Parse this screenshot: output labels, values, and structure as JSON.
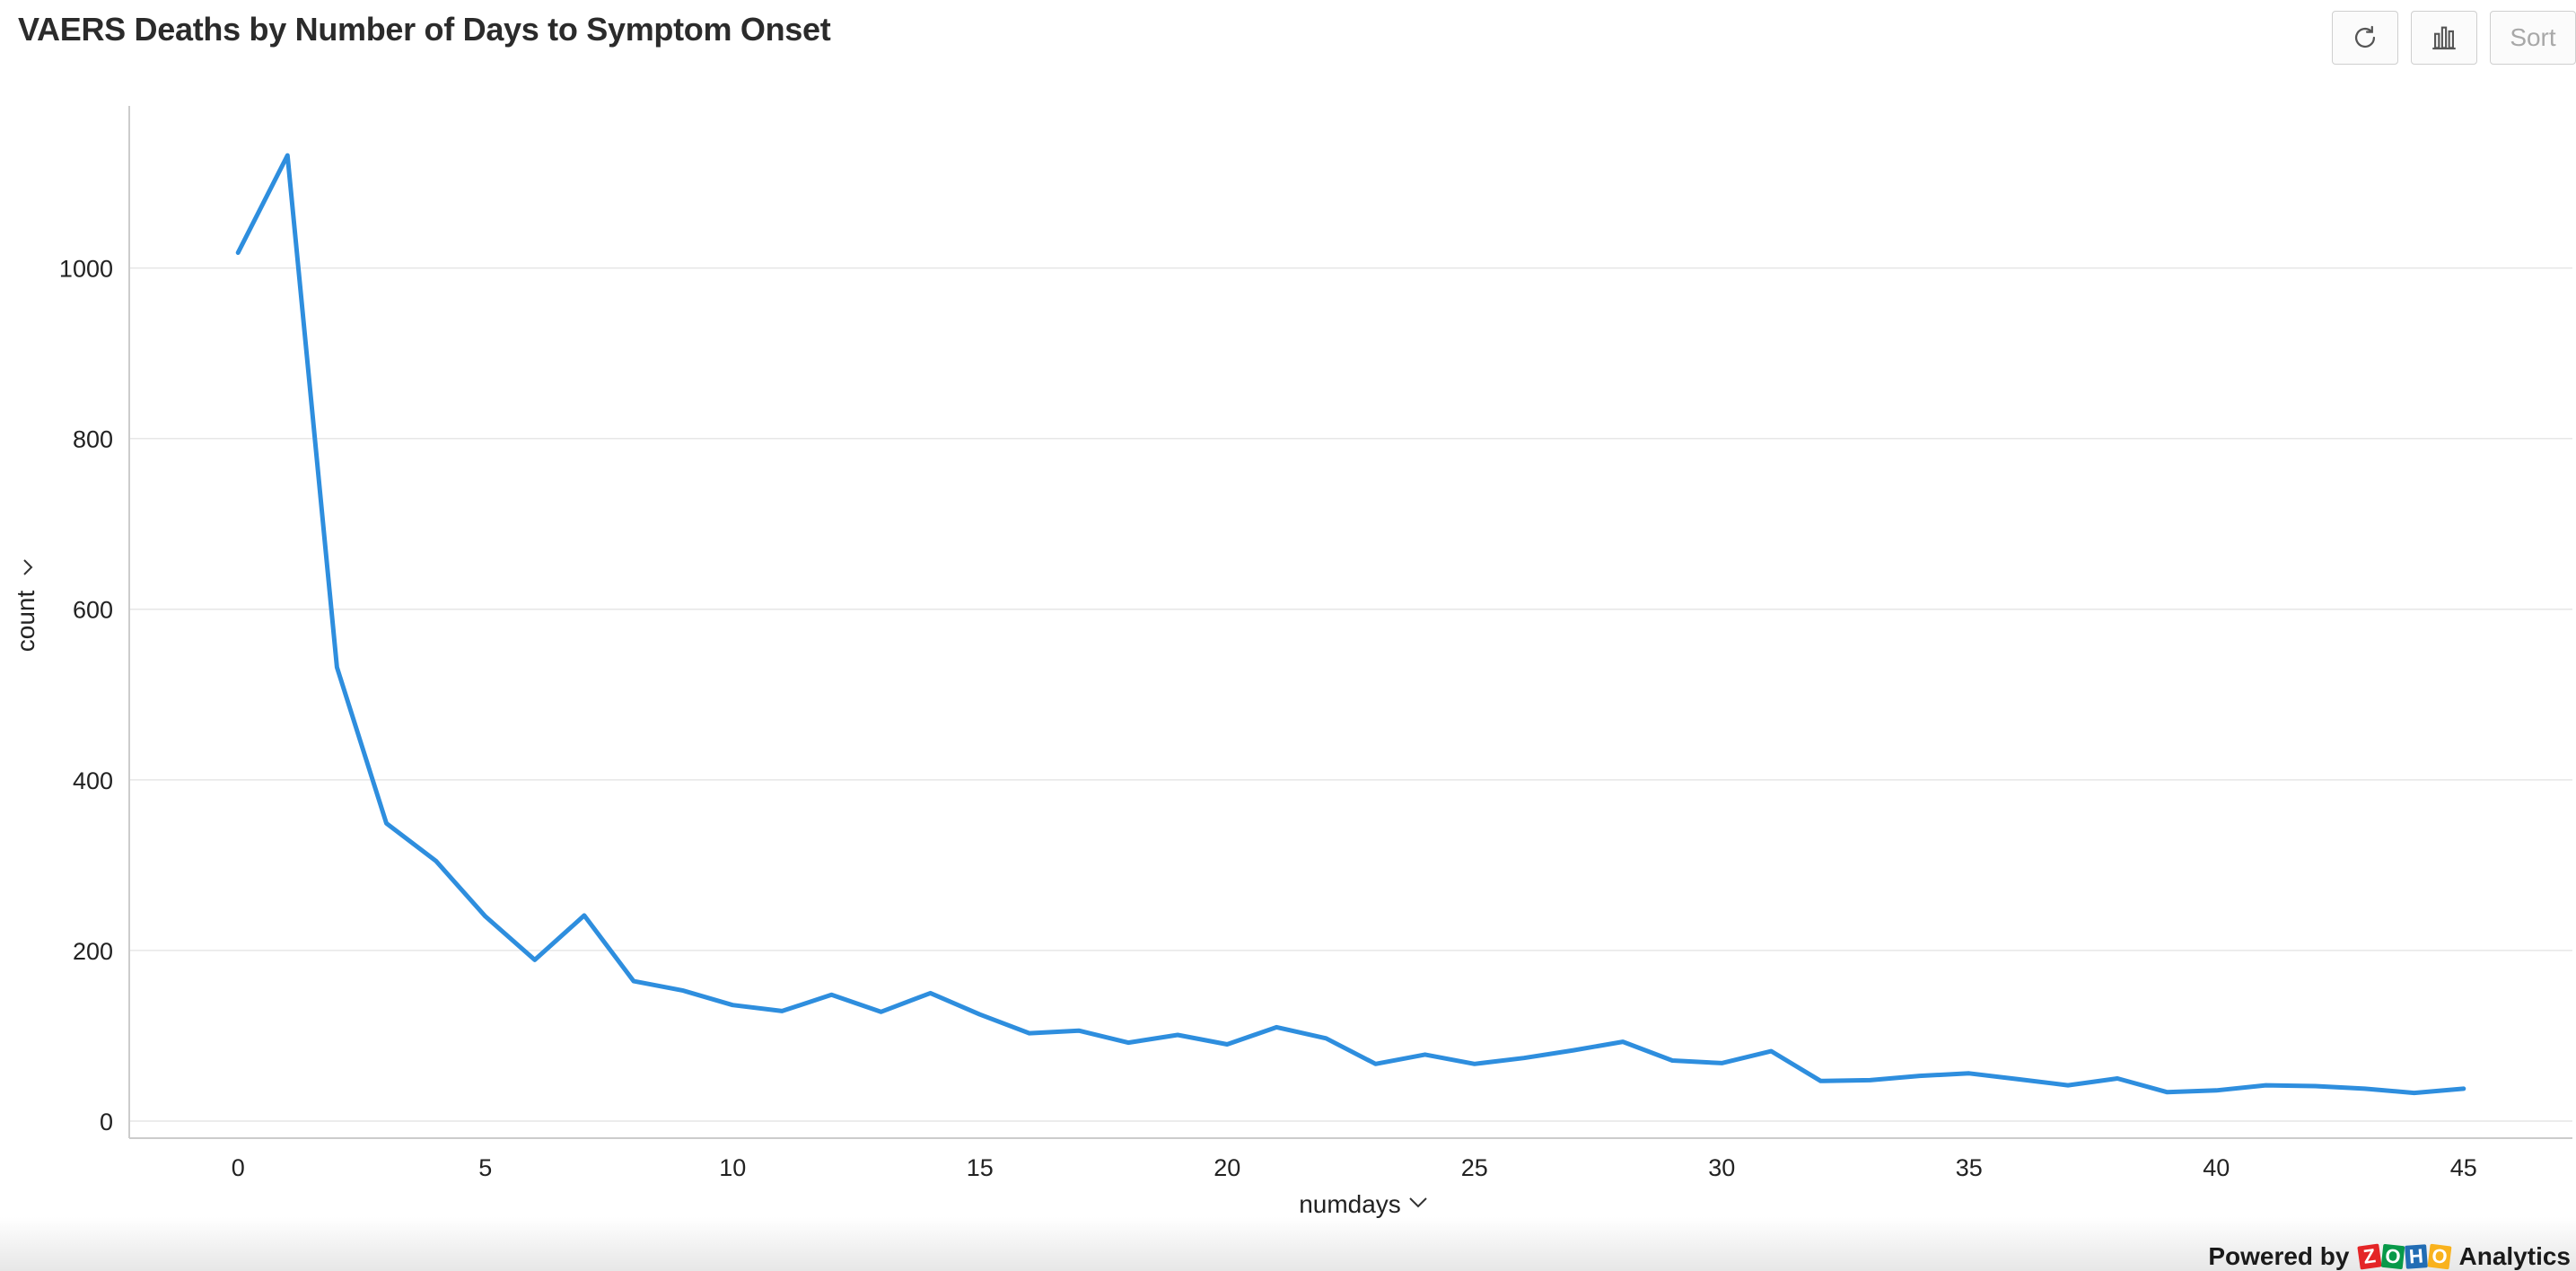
{
  "header": {
    "title": "VAERS Deaths by Number of Days to Symptom Onset",
    "buttons": {
      "refresh_icon": "refresh-icon",
      "chart_icon": "bar-chart-icon",
      "sort_label": "Sort"
    }
  },
  "footer": {
    "powered_by": "Powered by",
    "brand_logo_text": "ZOHO",
    "brand_product": "Analytics"
  },
  "colors": {
    "series": "#2e8ede",
    "grid": "#e6e6e6",
    "axis": "#cccccc"
  },
  "chart_data": {
    "type": "line",
    "title": "VAERS Deaths by Number of Days to Symptom Onset",
    "xlabel": "numdays",
    "ylabel": "count",
    "xlim": [
      -2.2,
      47.2
    ],
    "ylim": [
      -20,
      1190
    ],
    "x_ticks": [
      0,
      5,
      10,
      15,
      20,
      25,
      30,
      35,
      40,
      45
    ],
    "y_ticks": [
      0,
      200,
      400,
      600,
      800,
      1000
    ],
    "grid": true,
    "legend": "none",
    "x": [
      0,
      1,
      2,
      3,
      4,
      5,
      6,
      7,
      8,
      9,
      10,
      11,
      12,
      13,
      14,
      15,
      16,
      17,
      18,
      19,
      20,
      21,
      22,
      23,
      24,
      25,
      26,
      27,
      28,
      29,
      30,
      31,
      32,
      33,
      34,
      35,
      36,
      37,
      38,
      39,
      40,
      41,
      42,
      43,
      44,
      45
    ],
    "series": [
      {
        "values": [
          1018,
          1132,
          532,
          349,
          305,
          240,
          189,
          241,
          164,
          153,
          136,
          129,
          148,
          128,
          150,
          125,
          103,
          106,
          92,
          101,
          90,
          110,
          97,
          67,
          78,
          67,
          74,
          83,
          93,
          71,
          68,
          82,
          47,
          48,
          53,
          56,
          49,
          42,
          50,
          34,
          36,
          42,
          41,
          38,
          33,
          38
        ]
      }
    ]
  }
}
